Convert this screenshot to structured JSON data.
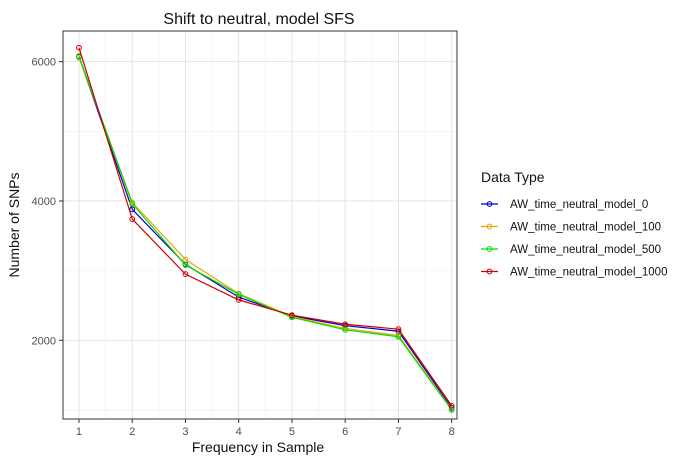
{
  "chart_data": {
    "type": "line",
    "title": "Shift to neutral, model SFS",
    "xlabel": "Frequency in Sample",
    "ylabel": "Number of SNPs",
    "x": [
      1,
      2,
      3,
      4,
      5,
      6,
      7,
      8
    ],
    "xlim": [
      0.7,
      8.1
    ],
    "ylim": [
      870,
      6440
    ],
    "x_ticks": [
      1,
      2,
      3,
      4,
      5,
      6,
      7,
      8
    ],
    "y_ticks": [
      2000,
      4000,
      6000
    ],
    "grid": true,
    "legend": {
      "title": "Data Type",
      "position": "right"
    },
    "series": [
      {
        "name": "AW_time_neutral_model_0",
        "color": "#0000cc",
        "values": [
          6070,
          3880,
          3090,
          2620,
          2350,
          2210,
          2130,
          1030
        ]
      },
      {
        "name": "AW_time_neutral_model_100",
        "color": "#e6a700",
        "values": [
          6060,
          3980,
          3160,
          2670,
          2340,
          2170,
          2070,
          1010
        ]
      },
      {
        "name": "AW_time_neutral_model_500",
        "color": "#00dd00",
        "values": [
          6080,
          3960,
          3080,
          2660,
          2330,
          2150,
          2050,
          1000
        ]
      },
      {
        "name": "AW_time_neutral_model_1000",
        "color": "#cc0000",
        "values": [
          6200,
          3740,
          2950,
          2580,
          2360,
          2230,
          2160,
          1060
        ]
      }
    ]
  }
}
